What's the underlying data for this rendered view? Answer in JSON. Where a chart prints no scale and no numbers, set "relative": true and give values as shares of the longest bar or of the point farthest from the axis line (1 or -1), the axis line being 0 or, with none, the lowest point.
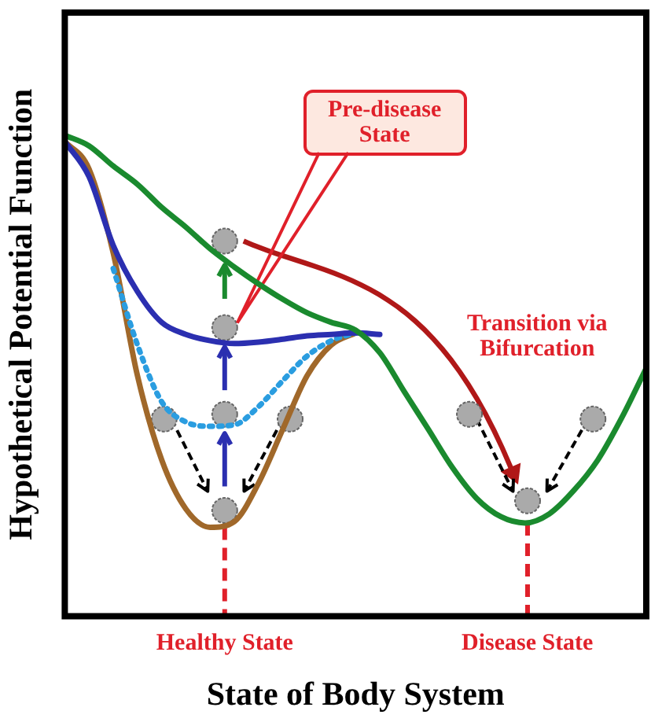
{
  "chart_data": {
    "type": "line",
    "relative": true,
    "marker": "none",
    "tick_labels": false,
    "xlabel": "State of Body System",
    "ylabel": "Hypothetical Potential Function",
    "categories": [
      null,
      null,
      null,
      null,
      null,
      null,
      null,
      null,
      null,
      null,
      null,
      null,
      null,
      null,
      null,
      null,
      null,
      null,
      null,
      null,
      null,
      null,
      null,
      null,
      null
    ],
    "annotations": [
      "Pre-disease State",
      "Transition via Bifurcation",
      "Healthy State",
      "Disease State"
    ],
    "series": [
      {
        "color": "#1a8a2e",
        "values": [
          1.0,
          0.978,
          0.936,
          0.898,
          0.85,
          0.809,
          0.764,
          0.726,
          0.691,
          0.659,
          0.631,
          0.611,
          0.595,
          0.548,
          0.468,
          0.389,
          0.309,
          0.245,
          0.207,
          0.194,
          0.213,
          0.261,
          0.325,
          0.414,
          0.516
        ]
      },
      {
        "color": "#2b2fb0",
        "values": [
          0.987,
          0.914,
          0.771,
          0.675,
          0.611,
          0.586,
          0.573,
          0.567,
          0.57,
          0.576,
          0.583,
          0.586,
          0.589,
          0.586,
          null,
          null,
          null,
          null,
          null,
          null,
          null,
          null,
          null,
          null,
          null
        ]
      },
      {
        "color": "#2a9de0",
        "line_style": "dotted",
        "values": [
          null,
          null,
          0.723,
          0.564,
          0.446,
          0.404,
          0.395,
          0.398,
          0.436,
          0.49,
          0.541,
          0.573,
          0.589,
          null,
          null,
          null,
          null,
          null,
          null,
          null,
          null,
          null,
          null,
          null,
          null
        ]
      },
      {
        "color": "#a0682a",
        "values": [
          0.987,
          0.93,
          0.755,
          0.5,
          0.325,
          0.223,
          0.185,
          0.197,
          0.277,
          0.389,
          0.5,
          0.564,
          0.589,
          null,
          null,
          null,
          null,
          null,
          null,
          null,
          null,
          null,
          null,
          null,
          null
        ]
      }
    ]
  }
}
